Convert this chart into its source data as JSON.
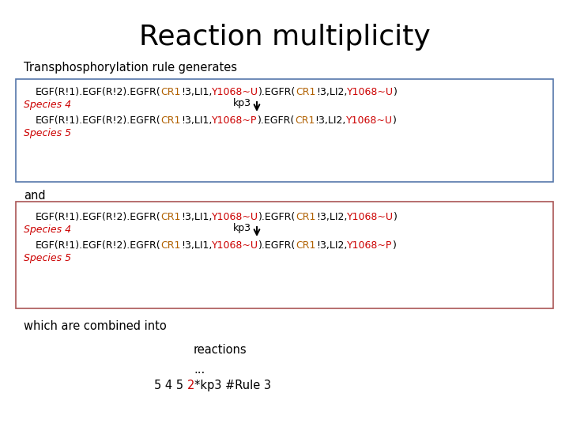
{
  "title": "Reaction multiplicity",
  "title_fontsize": 26,
  "bg_color": "#ffffff",
  "subtitle": "Transphosphorylation rule generates",
  "subtitle_fontsize": 10.5,
  "and_text": "and",
  "combined_text": "which are combined into",
  "reactions_text": "reactions",
  "dots_text": "...",
  "black_color": "#000000",
  "red_color": "#cc0000",
  "orange_color": "#b06000",
  "yellow_color": "#b8860b",
  "box1_color": "#5577aa",
  "box2_color": "#aa5555",
  "content_fontsize": 9.0,
  "species_fontsize": 9.0
}
